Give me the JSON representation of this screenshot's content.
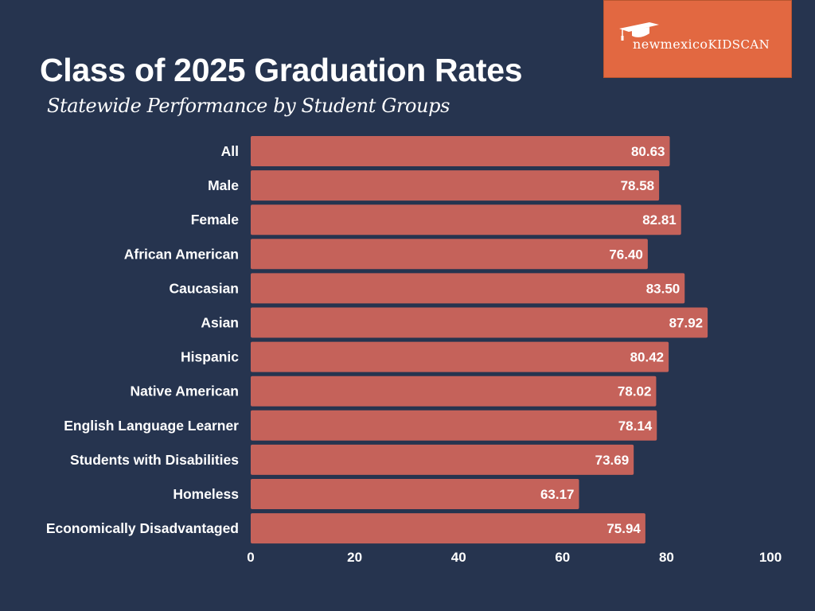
{
  "header": {
    "title": "Class of 2025 Graduation Rates",
    "subtitle": "Statewide Performance by Student Groups"
  },
  "logo": {
    "text_prefix": "new",
    "text_mid": "mexico",
    "text_suffix": "KIDSCAN",
    "icon": "graduation-cap-icon",
    "background": "#e26841"
  },
  "colors": {
    "background": "#26344f",
    "bar": "#c5625a",
    "text": "#ffffff"
  },
  "chart_data": {
    "type": "bar",
    "orientation": "horizontal",
    "title": "Class of 2025 Graduation Rates",
    "subtitle": "Statewide Performance by Student Groups",
    "xlabel": "",
    "ylabel": "",
    "categories": [
      "All",
      "Male",
      "Female",
      "African American",
      "Caucasian",
      "Asian",
      "Hispanic",
      "Native American",
      "English Language Learner",
      "Students with Disabilities",
      "Homeless",
      "Economically Disadvantaged"
    ],
    "values": [
      80.63,
      78.58,
      82.81,
      76.4,
      83.5,
      87.92,
      80.42,
      78.02,
      78.14,
      73.69,
      63.17,
      75.94
    ],
    "value_labels": [
      "80.63",
      "78.58",
      "82.81",
      "76.40",
      "83.50",
      "87.92",
      "80.42",
      "78.02",
      "78.14",
      "73.69",
      "63.17",
      "75.94"
    ],
    "xlim": [
      0,
      100
    ],
    "xticks": [
      0,
      20,
      40,
      60,
      80,
      100
    ],
    "xtick_labels": [
      "0",
      "20",
      "40",
      "60",
      "80",
      "100"
    ],
    "grid": false,
    "legend": "none"
  }
}
